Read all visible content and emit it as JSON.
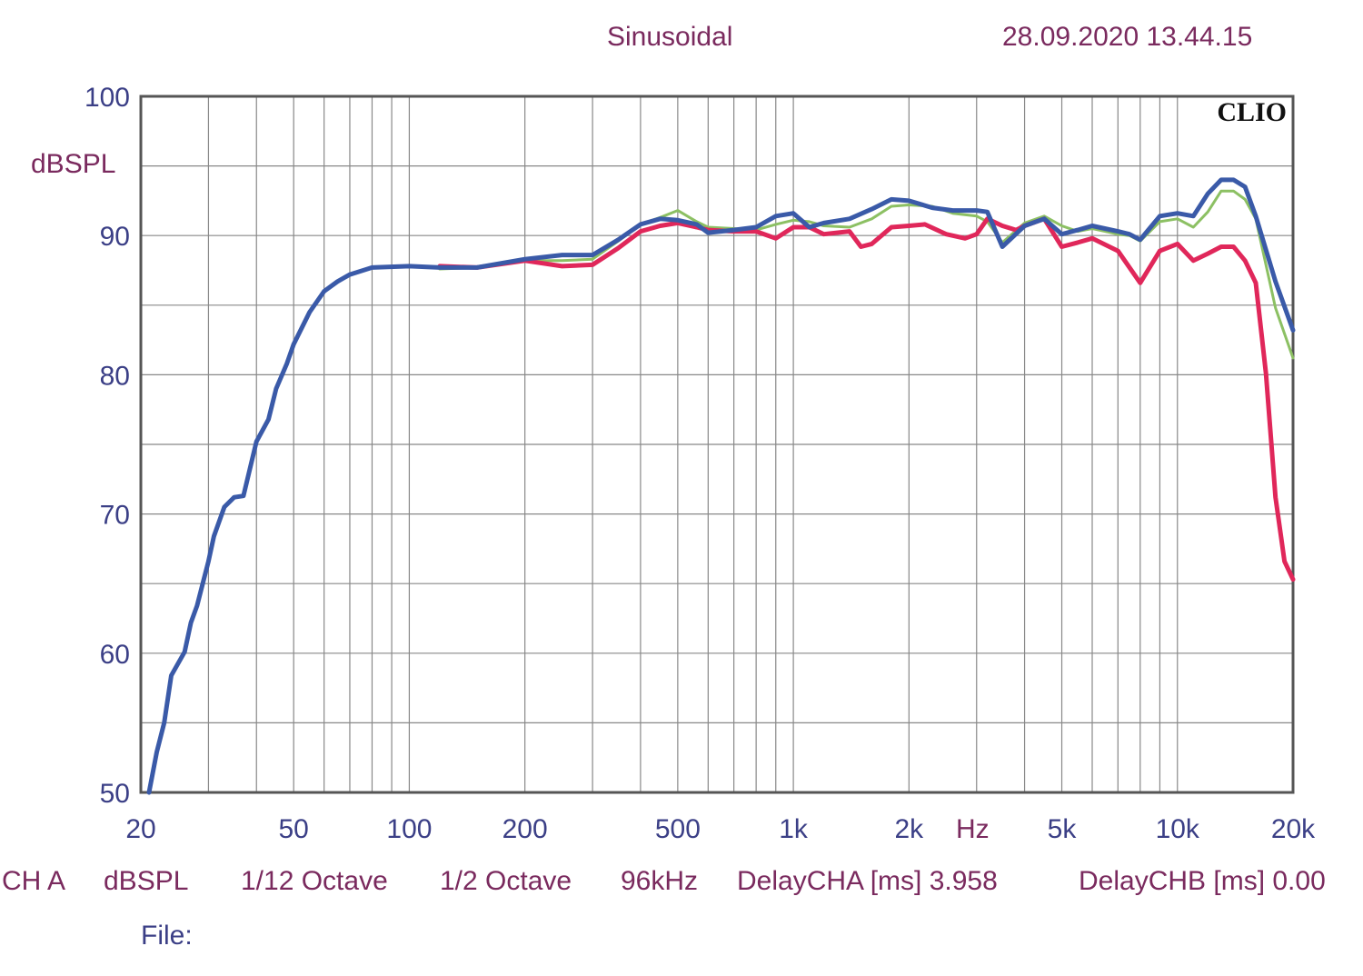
{
  "header": {
    "title": "Sinusoidal",
    "timestamp": "28.09.2020 13.44.15"
  },
  "brand": "CLIO",
  "y_unit": "dBSPL",
  "x_unit": "Hz",
  "footer": {
    "channel": "CH A",
    "unit": "dBSPL",
    "smoothing": "1/12 Octave",
    "resolution": "1/2 Octave",
    "rate": "96kHz",
    "delay_a": "DelayCHA [ms] 3.958",
    "delay_b": "DelayCHB [ms] 0.00",
    "file_label": "File:"
  },
  "colors": {
    "grid": "#888888",
    "axis": "#555555",
    "blue": "#3a5aa8",
    "green": "#8cc063",
    "red": "#e0275a"
  },
  "chart_data": {
    "type": "line",
    "x_scale": "log",
    "xlim": [
      20,
      20000
    ],
    "ylim": [
      50,
      100
    ],
    "x_ticks": [
      {
        "value": 20,
        "label": "20"
      },
      {
        "value": 50,
        "label": "50"
      },
      {
        "value": 100,
        "label": "100"
      },
      {
        "value": 200,
        "label": "200"
      },
      {
        "value": 500,
        "label": "500"
      },
      {
        "value": 1000,
        "label": "1k"
      },
      {
        "value": 2000,
        "label": "2k"
      },
      {
        "value": 5000,
        "label": "5k"
      },
      {
        "value": 10000,
        "label": "10k"
      },
      {
        "value": 20000,
        "label": "20k"
      }
    ],
    "y_ticks": [
      {
        "value": 100,
        "label": "100"
      },
      {
        "value": 90,
        "label": "90"
      },
      {
        "value": 80,
        "label": "80"
      },
      {
        "value": 70,
        "label": "70"
      },
      {
        "value": 60,
        "label": "60"
      },
      {
        "value": 50,
        "label": "50"
      }
    ],
    "grid": true,
    "series": [
      {
        "color": "#8cc063",
        "width": 3,
        "points": [
          [
            120,
            87.6
          ],
          [
            150,
            87.7
          ],
          [
            200,
            88.2
          ],
          [
            250,
            88.2
          ],
          [
            300,
            88.3
          ],
          [
            350,
            89.6
          ],
          [
            400,
            90.8
          ],
          [
            450,
            91.3
          ],
          [
            500,
            91.8
          ],
          [
            560,
            91.0
          ],
          [
            600,
            90.6
          ],
          [
            700,
            90.5
          ],
          [
            800,
            90.4
          ],
          [
            900,
            90.8
          ],
          [
            1000,
            91.1
          ],
          [
            1100,
            91.0
          ],
          [
            1200,
            90.7
          ],
          [
            1400,
            90.6
          ],
          [
            1600,
            91.2
          ],
          [
            1800,
            92.1
          ],
          [
            2000,
            92.2
          ],
          [
            2300,
            92.1
          ],
          [
            2600,
            91.6
          ],
          [
            3000,
            91.4
          ],
          [
            3200,
            91.0
          ],
          [
            3500,
            89.5
          ],
          [
            4000,
            90.9
          ],
          [
            4500,
            91.4
          ],
          [
            5000,
            90.7
          ],
          [
            5500,
            90.3
          ],
          [
            6000,
            90.5
          ],
          [
            7000,
            90.1
          ],
          [
            7500,
            90.0
          ],
          [
            8000,
            89.6
          ],
          [
            9000,
            91.0
          ],
          [
            10000,
            91.2
          ],
          [
            11000,
            90.6
          ],
          [
            12000,
            91.7
          ],
          [
            13000,
            93.2
          ],
          [
            14000,
            93.2
          ],
          [
            15000,
            92.6
          ],
          [
            16000,
            91.2
          ],
          [
            18000,
            84.8
          ],
          [
            20000,
            81.2
          ]
        ]
      },
      {
        "color": "#e0275a",
        "width": 5,
        "points": [
          [
            120,
            87.8
          ],
          [
            150,
            87.7
          ],
          [
            200,
            88.2
          ],
          [
            250,
            87.8
          ],
          [
            300,
            87.9
          ],
          [
            350,
            89.1
          ],
          [
            400,
            90.3
          ],
          [
            450,
            90.7
          ],
          [
            500,
            90.9
          ],
          [
            560,
            90.6
          ],
          [
            600,
            90.4
          ],
          [
            700,
            90.3
          ],
          [
            800,
            90.3
          ],
          [
            900,
            89.8
          ],
          [
            1000,
            90.6
          ],
          [
            1100,
            90.6
          ],
          [
            1200,
            90.1
          ],
          [
            1400,
            90.3
          ],
          [
            1500,
            89.2
          ],
          [
            1600,
            89.4
          ],
          [
            1800,
            90.6
          ],
          [
            2000,
            90.7
          ],
          [
            2200,
            90.8
          ],
          [
            2500,
            90.1
          ],
          [
            2800,
            89.8
          ],
          [
            3000,
            90.1
          ],
          [
            3200,
            91.2
          ],
          [
            3500,
            90.7
          ],
          [
            3800,
            90.4
          ],
          [
            4000,
            90.7
          ],
          [
            4500,
            91.2
          ],
          [
            5000,
            89.2
          ],
          [
            5500,
            89.5
          ],
          [
            6000,
            89.8
          ],
          [
            7000,
            88.9
          ],
          [
            8000,
            86.6
          ],
          [
            9000,
            88.9
          ],
          [
            10000,
            89.4
          ],
          [
            11000,
            88.2
          ],
          [
            12000,
            88.7
          ],
          [
            13000,
            89.2
          ],
          [
            14000,
            89.2
          ],
          [
            15000,
            88.2
          ],
          [
            16000,
            86.6
          ],
          [
            17000,
            80.1
          ],
          [
            18000,
            71.2
          ],
          [
            19000,
            66.6
          ],
          [
            20000,
            65.3
          ]
        ]
      },
      {
        "color": "#3a5aa8",
        "width": 5,
        "points": [
          [
            21,
            50.0
          ],
          [
            22,
            52.9
          ],
          [
            23,
            55.0
          ],
          [
            24,
            58.4
          ],
          [
            26,
            60.1
          ],
          [
            27,
            62.2
          ],
          [
            28,
            63.4
          ],
          [
            30,
            66.6
          ],
          [
            31,
            68.4
          ],
          [
            33,
            70.5
          ],
          [
            35,
            71.2
          ],
          [
            37,
            71.3
          ],
          [
            40,
            75.2
          ],
          [
            43,
            76.8
          ],
          [
            45,
            79.0
          ],
          [
            48,
            80.8
          ],
          [
            50,
            82.2
          ],
          [
            55,
            84.5
          ],
          [
            60,
            86.0
          ],
          [
            65,
            86.7
          ],
          [
            70,
            87.2
          ],
          [
            80,
            87.7
          ],
          [
            100,
            87.8
          ],
          [
            120,
            87.7
          ],
          [
            150,
            87.7
          ],
          [
            200,
            88.3
          ],
          [
            250,
            88.6
          ],
          [
            300,
            88.6
          ],
          [
            350,
            89.7
          ],
          [
            400,
            90.8
          ],
          [
            450,
            91.2
          ],
          [
            500,
            91.1
          ],
          [
            560,
            90.8
          ],
          [
            600,
            90.2
          ],
          [
            700,
            90.4
          ],
          [
            800,
            90.6
          ],
          [
            900,
            91.4
          ],
          [
            1000,
            91.6
          ],
          [
            1100,
            90.6
          ],
          [
            1200,
            90.9
          ],
          [
            1400,
            91.2
          ],
          [
            1600,
            91.9
          ],
          [
            1800,
            92.6
          ],
          [
            2000,
            92.5
          ],
          [
            2300,
            92.0
          ],
          [
            2600,
            91.8
          ],
          [
            3000,
            91.8
          ],
          [
            3200,
            91.7
          ],
          [
            3500,
            89.2
          ],
          [
            4000,
            90.7
          ],
          [
            4500,
            91.2
          ],
          [
            5000,
            90.1
          ],
          [
            5500,
            90.4
          ],
          [
            6000,
            90.7
          ],
          [
            7000,
            90.3
          ],
          [
            7500,
            90.1
          ],
          [
            8000,
            89.7
          ],
          [
            9000,
            91.4
          ],
          [
            10000,
            91.6
          ],
          [
            11000,
            91.4
          ],
          [
            12000,
            93.0
          ],
          [
            13000,
            94.0
          ],
          [
            14000,
            94.0
          ],
          [
            15000,
            93.5
          ],
          [
            16000,
            91.4
          ],
          [
            18000,
            86.7
          ],
          [
            20000,
            83.2
          ]
        ]
      }
    ]
  }
}
